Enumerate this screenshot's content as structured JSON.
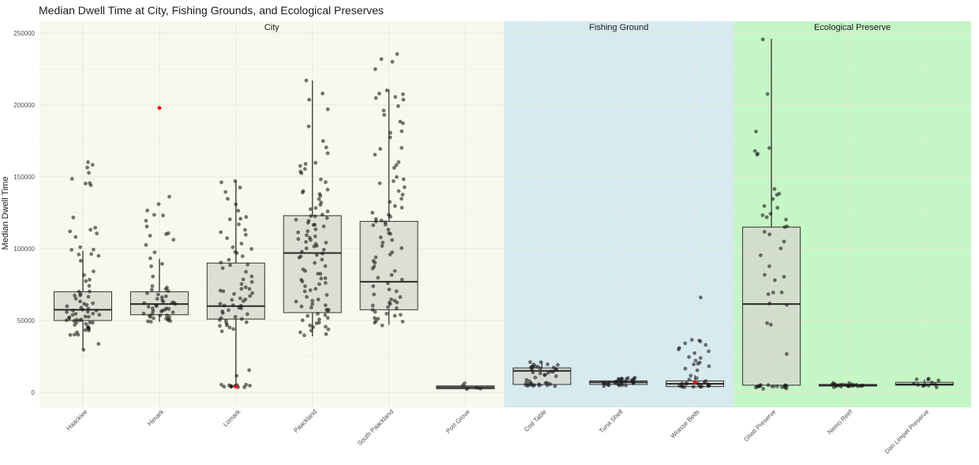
{
  "chart_data": {
    "type": "boxplot",
    "title": "Median Dwell Time at City, Fishing Grounds, and Ecological Preserves",
    "xlabel": "",
    "ylabel": "Median Dwell Time",
    "ylim": [
      -10000,
      255000
    ],
    "yticks": [
      0,
      50000,
      100000,
      150000,
      200000,
      250000
    ],
    "ytick_labels": [
      "0",
      "50000",
      "100000",
      "150000",
      "200000",
      "250000"
    ],
    "grid": true,
    "groups": [
      {
        "name": "City",
        "color": "#f8f9ec",
        "categories": [
          0,
          1,
          2,
          3,
          4,
          5
        ]
      },
      {
        "name": "Fishing Ground",
        "color": "#d6eaf0",
        "categories": [
          6,
          7,
          8
        ]
      },
      {
        "name": "Ecological Preserve",
        "color": "#c5f6c5",
        "categories": [
          9,
          10,
          11
        ]
      }
    ],
    "categories": [
      "Haackiee",
      "Himark",
      "Lomark",
      "Paackland",
      "South Paackland",
      "Port Grove",
      "Cod Table",
      "Tuna Shelf",
      "Wrasse Beds",
      "Ghoti Preserve",
      "Nemo Reef",
      "Don Limpet Preserve"
    ],
    "boxes": [
      {
        "q1": 50000,
        "median": 57500,
        "q3": 70000,
        "whisker_low": 29500,
        "whisker_high": 98500
      },
      {
        "q1": 54000,
        "median": 61500,
        "q3": 70000,
        "whisker_low": 49000,
        "whisker_high": 93000
      },
      {
        "q1": 51000,
        "median": 60000,
        "q3": 90000,
        "whisker_low": 4000,
        "whisker_high": 147000
      },
      {
        "q1": 55500,
        "median": 97000,
        "q3": 123000,
        "whisker_low": 39000,
        "whisker_high": 217000
      },
      {
        "q1": 57500,
        "median": 77000,
        "q3": 119000,
        "whisker_low": 47000,
        "whisker_high": 211000
      },
      {
        "q1": 2500,
        "median": 3500,
        "q3": 4500,
        "whisker_low": 2000,
        "whisker_high": 5000
      },
      {
        "q1": 5500,
        "median": 15000,
        "q3": 17000,
        "whisker_low": 4500,
        "whisker_high": 21000
      },
      {
        "q1": 5500,
        "median": 7000,
        "q3": 8000,
        "whisker_low": 4500,
        "whisker_high": 10500
      },
      {
        "q1": 4000,
        "median": 6000,
        "q3": 8000,
        "whisker_low": 3500,
        "whisker_high": 12000
      },
      {
        "q1": 5000,
        "median": 61500,
        "q3": 115000,
        "whisker_low": 3000,
        "whisker_high": 246000
      },
      {
        "q1": 4500,
        "median": 5000,
        "q3": 5500,
        "whisker_low": 4000,
        "whisker_high": 6000
      },
      {
        "q1": 5000,
        "median": 5500,
        "q3": 7000,
        "whisker_low": 4000,
        "whisker_high": 9000
      }
    ],
    "highlight_points": [
      {
        "category": 1,
        "value": 198000,
        "color": "#ff0000"
      },
      {
        "category": 2,
        "value": 4000,
        "color": "#ff0000"
      },
      {
        "category": 8,
        "value": 7000,
        "color": "#ff0000"
      }
    ],
    "points": [
      [
        160000,
        157000,
        153000,
        149000,
        146000,
        144000,
        158000,
        145000,
        122000,
        115000,
        112000,
        113000,
        108000,
        111000,
        101000,
        99000,
        99000,
        96000,
        95000,
        96000,
        92000,
        84000,
        82000,
        78000,
        77000,
        74000,
        70000,
        70000,
        68000,
        68000,
        67000,
        66000,
        65000,
        63000,
        62000,
        62000,
        61000,
        60000,
        59000,
        58000,
        58000,
        57000,
        57000,
        56000,
        56000,
        55000,
        55000,
        54000,
        54000,
        53000,
        53000,
        52000,
        52000,
        51000,
        51000,
        50000,
        50000,
        50000,
        49000,
        49000,
        48000,
        48000,
        47000,
        46000,
        45000,
        45000,
        44000,
        43000,
        43000,
        42000,
        40000,
        40000,
        40000,
        34000,
        30000
      ],
      [
        136000,
        131000,
        127000,
        123000,
        123000,
        119000,
        115000,
        111000,
        110000,
        109000,
        106000,
        103000,
        98000,
        93000,
        90000,
        88000,
        81000,
        74000,
        73000,
        72000,
        71000,
        70000,
        69000,
        68000,
        67000,
        66000,
        65000,
        64000,
        63000,
        63000,
        62000,
        62000,
        61000,
        61000,
        60000,
        60000,
        59000,
        59000,
        58000,
        58000,
        57000,
        57000,
        56000,
        56000,
        55000,
        55000,
        54000,
        54000,
        53000,
        53000,
        52000,
        52000,
        51000,
        51000,
        50000,
        50000,
        49000,
        49000
      ],
      [
        147000,
        146000,
        143000,
        139000,
        135000,
        131000,
        126000,
        122000,
        121000,
        120000,
        117000,
        113000,
        112000,
        110000,
        107000,
        104000,
        101000,
        100000,
        98000,
        97000,
        95000,
        92000,
        90000,
        89000,
        88000,
        87000,
        84000,
        81000,
        79000,
        77000,
        75000,
        73000,
        72000,
        72000,
        71000,
        70000,
        69000,
        68000,
        67000,
        66000,
        65000,
        64000,
        63000,
        62000,
        61000,
        60000,
        60000,
        59000,
        58000,
        57000,
        56000,
        55000,
        54000,
        53000,
        52000,
        51000,
        50000,
        50000,
        49000,
        48000,
        47000,
        46000,
        45000,
        44000,
        42000,
        15000,
        12000,
        5000,
        5000,
        5000,
        4500,
        4500,
        4500,
        4500,
        4500,
        4500,
        4000,
        4000,
        4000,
        4000
      ],
      [
        217000,
        208000,
        204000,
        197000,
        185000,
        175000,
        171000,
        166000,
        160000,
        159000,
        158000,
        155000,
        154000,
        152000,
        148000,
        146000,
        141000,
        140000,
        139000,
        138000,
        137000,
        135000,
        132000,
        130000,
        128000,
        127000,
        126000,
        124000,
        123000,
        122000,
        121000,
        120000,
        119000,
        118000,
        117000,
        116000,
        115000,
        113000,
        112000,
        111000,
        110000,
        109000,
        108000,
        107000,
        106000,
        105000,
        104000,
        103000,
        102000,
        101000,
        100000,
        99000,
        98000,
        97000,
        96000,
        95000,
        94000,
        92000,
        90000,
        88000,
        86000,
        85000,
        83000,
        82000,
        80000,
        79000,
        78000,
        77000,
        76000,
        75000,
        74000,
        72000,
        71000,
        70000,
        68000,
        66000,
        65000,
        64000,
        63000,
        62000,
        61000,
        60000,
        59000,
        58000,
        57000,
        56000,
        55000,
        54000,
        53000,
        52000,
        51000,
        50000,
        49000,
        48000,
        47000,
        46000,
        45000,
        44000,
        43000,
        42000,
        41000,
        40000
      ],
      [
        235000,
        232000,
        230000,
        225000,
        210000,
        208000,
        207000,
        206000,
        205000,
        204000,
        199000,
        196000,
        193000,
        188000,
        187000,
        182000,
        181000,
        178000,
        170000,
        169000,
        165000,
        160000,
        158000,
        156000,
        150000,
        148000,
        147000,
        145000,
        143000,
        140000,
        138000,
        135000,
        133000,
        130000,
        128000,
        125000,
        123000,
        122000,
        121000,
        120000,
        119000,
        118000,
        117000,
        116000,
        113000,
        111000,
        110000,
        108000,
        106000,
        104000,
        102000,
        100000,
        98000,
        96000,
        94000,
        92000,
        90000,
        88000,
        86000,
        84000,
        82000,
        80000,
        78000,
        76000,
        74000,
        72000,
        70000,
        68000,
        66000,
        65000,
        64000,
        63000,
        62000,
        61000,
        60000,
        59000,
        58000,
        57000,
        56000,
        55000,
        54000,
        53000,
        52000,
        51000,
        50000,
        49000,
        48000,
        47000
      ],
      [
        6000,
        5000,
        3000,
        2500,
        2000
      ],
      [
        21000,
        20500,
        20000,
        19500,
        19000,
        18500,
        18000,
        18000,
        17500,
        17000,
        17000,
        16500,
        16000,
        16000,
        15500,
        15000,
        14500,
        14000,
        13500,
        13000,
        12500,
        12000,
        11000,
        10000,
        9000,
        8000,
        7000,
        6500,
        6000,
        6000,
        5500,
        5500,
        5500,
        5000,
        5000,
        5000,
        5000,
        5000,
        4500,
        4500,
        4500
      ],
      [
        10500,
        10000,
        10000,
        9500,
        9500,
        9000,
        9000,
        8500,
        8500,
        8000,
        8000,
        8000,
        7500,
        7500,
        7500,
        7000,
        7000,
        7000,
        7000,
        6500,
        6500,
        6500,
        6000,
        6000,
        6000,
        5500,
        5500,
        5500,
        5000,
        5000,
        5000,
        4500
      ],
      [
        66000,
        37000,
        36000,
        35000,
        34000,
        33000,
        31000,
        30000,
        29000,
        27000,
        25000,
        24000,
        22000,
        21000,
        20000,
        19000,
        18000,
        17000,
        15000,
        12000,
        10000,
        9000,
        8000,
        7000,
        6500,
        6000,
        6000,
        5500,
        5500,
        5000,
        5000,
        5000,
        4500,
        4500,
        4500,
        4000,
        4000,
        4000,
        3500,
        3500
      ],
      [
        246000,
        208000,
        182000,
        170000,
        168000,
        166000,
        165000,
        142000,
        138000,
        137000,
        135000,
        130000,
        128000,
        124000,
        123000,
        122000,
        120000,
        116000,
        115000,
        112000,
        110000,
        105000,
        100000,
        95000,
        88000,
        82000,
        80000,
        78000,
        70000,
        69000,
        68000,
        62000,
        61000,
        48000,
        47000,
        27000,
        5000,
        5000,
        5000,
        4500,
        4500,
        4500,
        4500,
        4000,
        4000,
        4000,
        4000,
        4000,
        3500,
        3500,
        3500,
        3000,
        3000
      ],
      [
        6000,
        6000,
        5500,
        5500,
        5500,
        5500,
        5000,
        5000,
        5000,
        5000,
        5000,
        5000,
        5000,
        4500,
        4500,
        4500,
        4500,
        4500,
        4500,
        4000,
        4000,
        4000,
        4000,
        4000
      ],
      [
        10000,
        9000,
        8500,
        8000,
        7000,
        6000,
        6000,
        5500,
        5500,
        5000,
        4500,
        4000,
        4000
      ]
    ],
    "style": {
      "box_fill": "#d6d6cc",
      "box_stroke": "#333333",
      "point_color": "#1a1a1a",
      "grid_color": "#e8e8dc"
    }
  }
}
